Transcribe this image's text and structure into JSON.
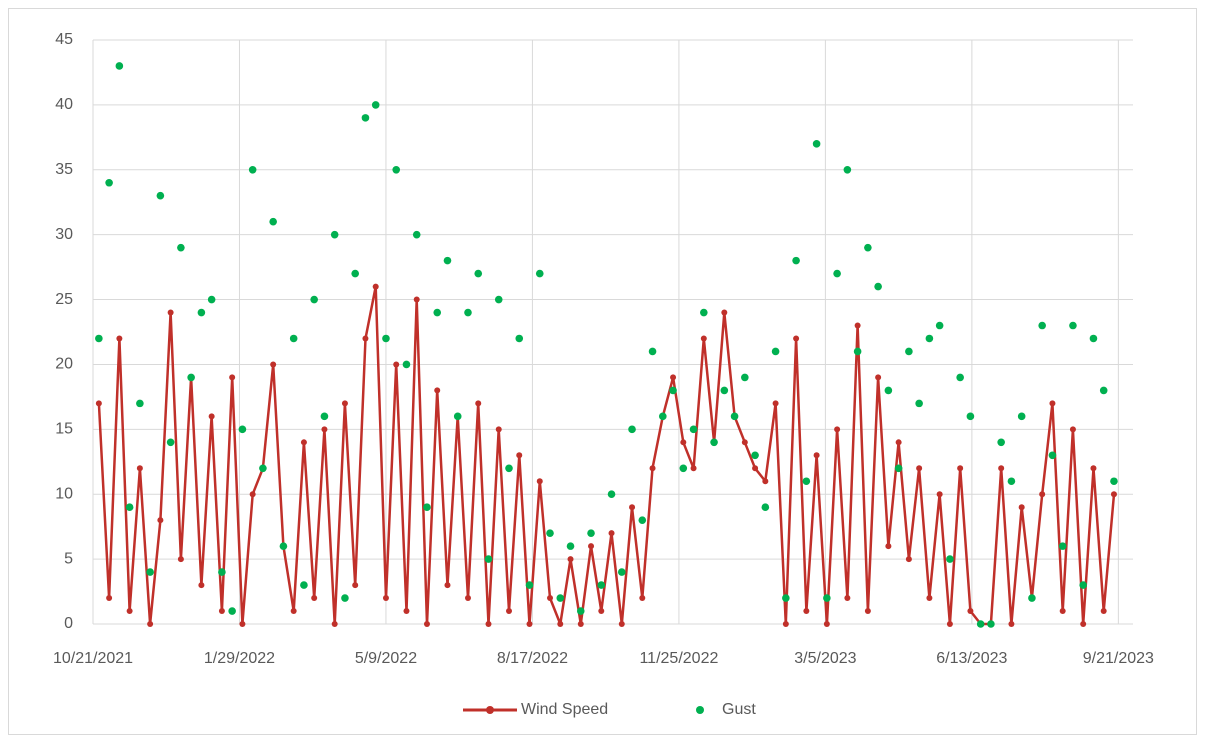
{
  "chart_data": {
    "type": "line-scatter",
    "x": [
      "10/25/2021",
      "11/1/2021",
      "11/8/2021",
      "11/15/2021",
      "11/22/2021",
      "11/29/2021",
      "12/6/2021",
      "12/13/2021",
      "12/20/2021",
      "12/27/2021",
      "1/3/2022",
      "1/10/2022",
      "1/17/2022",
      "1/24/2022",
      "1/31/2022",
      "2/7/2022",
      "2/14/2022",
      "2/21/2022",
      "2/28/2022",
      "3/7/2022",
      "3/14/2022",
      "3/21/2022",
      "3/28/2022",
      "4/4/2022",
      "4/11/2022",
      "4/18/2022",
      "4/25/2022",
      "5/2/2022",
      "5/9/2022",
      "5/16/2022",
      "5/23/2022",
      "5/30/2022",
      "6/6/2022",
      "6/13/2022",
      "6/20/2022",
      "6/27/2022",
      "7/4/2022",
      "7/11/2022",
      "7/18/2022",
      "7/25/2022",
      "8/1/2022",
      "8/8/2022",
      "8/15/2022",
      "8/22/2022",
      "8/29/2022",
      "9/5/2022",
      "9/12/2022",
      "9/19/2022",
      "9/26/2022",
      "10/3/2022",
      "10/10/2022",
      "10/17/2022",
      "10/24/2022",
      "10/31/2022",
      "11/7/2022",
      "11/14/2022",
      "11/21/2022",
      "11/28/2022",
      "12/5/2022",
      "12/12/2022",
      "12/19/2022",
      "12/26/2022",
      "1/2/2023",
      "1/9/2023",
      "1/16/2023",
      "1/23/2023",
      "1/30/2023",
      "2/6/2023",
      "2/13/2023",
      "2/20/2023",
      "2/27/2023",
      "3/6/2023",
      "3/13/2023",
      "3/20/2023",
      "3/27/2023",
      "4/3/2023",
      "4/10/2023",
      "4/17/2023",
      "4/24/2023",
      "5/1/2023",
      "5/8/2023",
      "5/15/2023",
      "5/22/2023",
      "5/29/2023",
      "6/5/2023",
      "6/12/2023",
      "6/19/2023",
      "6/26/2023",
      "7/3/2023",
      "7/10/2023",
      "7/17/2023",
      "7/24/2023",
      "7/31/2023",
      "8/7/2023",
      "8/14/2023",
      "8/21/2023",
      "8/28/2023",
      "9/4/2023",
      "9/11/2023",
      "9/18/2023"
    ],
    "series": [
      {
        "name": "Wind Speed",
        "color": "#c0302a",
        "values": [
          17,
          2,
          22,
          1,
          12,
          0,
          8,
          24,
          5,
          19,
          3,
          16,
          1,
          19,
          0,
          10,
          12,
          20,
          6,
          1,
          14,
          2,
          15,
          0,
          17,
          3,
          22,
          26,
          2,
          20,
          1,
          25,
          0,
          18,
          3,
          16,
          2,
          17,
          0,
          15,
          1,
          13,
          0,
          11,
          2,
          0,
          5,
          0,
          6,
          1,
          7,
          0,
          9,
          2,
          12,
          16,
          19,
          14,
          12,
          22,
          14,
          24,
          16,
          14,
          12,
          11,
          17,
          0,
          22,
          1,
          13,
          0,
          15,
          2,
          23,
          1,
          19,
          6,
          14,
          5,
          12,
          2,
          10,
          0,
          12,
          1,
          0,
          0,
          12,
          0,
          9,
          2,
          10,
          17,
          1,
          15,
          0,
          12,
          1,
          10
        ]
      },
      {
        "name": "Gust",
        "color": "#00b050",
        "values": [
          22,
          34,
          43,
          9,
          17,
          4,
          33,
          14,
          29,
          19,
          24,
          25,
          4,
          1,
          15,
          35,
          12,
          31,
          6,
          22,
          3,
          25,
          16,
          30,
          2,
          27,
          39,
          40,
          22,
          35,
          20,
          30,
          9,
          24,
          28,
          16,
          24,
          27,
          5,
          25,
          12,
          22,
          3,
          27,
          7,
          2,
          6,
          1,
          7,
          3,
          10,
          4,
          15,
          8,
          21,
          16,
          18,
          12,
          15,
          24,
          14,
          18,
          16,
          19,
          13,
          9,
          21,
          2,
          28,
          11,
          37,
          2,
          27,
          35,
          21,
          29,
          26,
          18,
          12,
          21,
          17,
          22,
          23,
          5,
          19,
          16,
          0,
          0,
          14,
          11,
          16,
          2,
          23,
          13,
          6,
          23,
          3,
          22,
          18,
          11
        ]
      }
    ],
    "xlim": [
      "10/21/2021",
      "10/1/2023"
    ],
    "xticks": [
      "10/21/2021",
      "1/29/2022",
      "5/9/2022",
      "8/17/2022",
      "11/25/2022",
      "3/5/2023",
      "6/13/2023",
      "9/21/2023"
    ],
    "ylim": [
      0,
      45
    ],
    "yticks": [
      0,
      5,
      10,
      15,
      20,
      25,
      30,
      35,
      40,
      45
    ],
    "grid": true,
    "legend": "bottom"
  }
}
